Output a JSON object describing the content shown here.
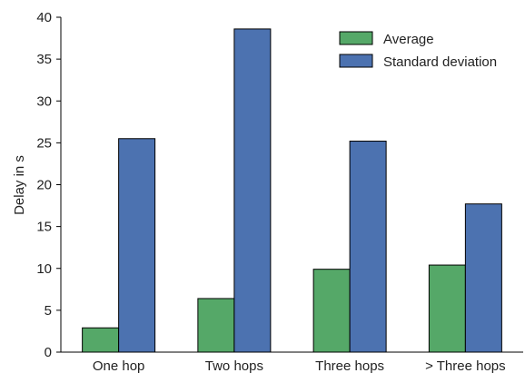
{
  "chart_data": {
    "type": "bar",
    "title": "",
    "xlabel": "",
    "ylabel": "Delay in s",
    "categories": [
      "One hop",
      "Two hops",
      "Three hops",
      "> Three hops"
    ],
    "series": [
      {
        "name": "Average",
        "color": "#55a868",
        "values": [
          2.9,
          6.4,
          9.9,
          10.4
        ]
      },
      {
        "name": "Standard deviation",
        "color": "#4c72b0",
        "values": [
          25.5,
          38.6,
          25.2,
          17.7
        ]
      }
    ],
    "ylim": [
      0,
      40
    ],
    "yticks": [
      0,
      5,
      10,
      15,
      20,
      25,
      30,
      35,
      40
    ],
    "grid": false,
    "legend_position": "top-right"
  }
}
